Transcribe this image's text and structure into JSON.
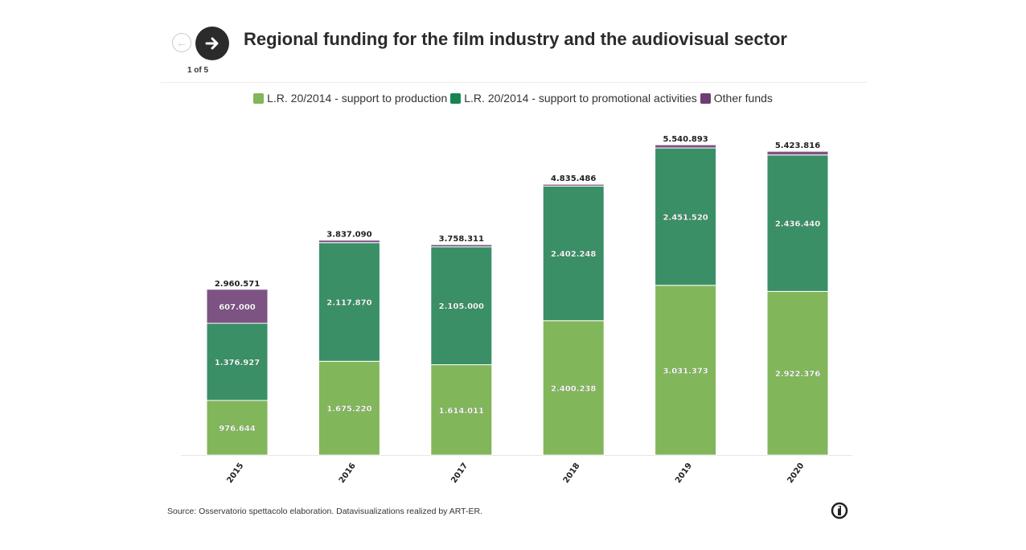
{
  "header": {
    "title": "Regional funding for the film industry and the audiovisual sector",
    "counter": "1 of 5",
    "prev_icon": "arrow-left-icon",
    "next_icon": "arrow-right-icon"
  },
  "footer": {
    "source": "Source: Osservatorio spettacolo elaboration. Datavisualizations realized by ART-ER.",
    "logo_icon": "info-logo-icon"
  },
  "chart_data": {
    "type": "bar",
    "stacked": true,
    "title": "Regional funding for the film industry and the audiovisual sector",
    "xlabel": "",
    "ylabel": "",
    "ylim": [
      0,
      5540893
    ],
    "grid": false,
    "legend_position": "top",
    "categories": [
      "2015",
      "2016",
      "2017",
      "2018",
      "2019",
      "2020"
    ],
    "series": [
      {
        "name": "L.R. 20/2014 - support to production",
        "color": "#82b65b",
        "values": [
          976644,
          1675220,
          1614011,
          2400238,
          3031373,
          2922376
        ],
        "labels": [
          "976.644",
          "1.675.220",
          "1.614.011",
          "2.400.238",
          "3.031.373",
          "2.922.376"
        ]
      },
      {
        "name": "L.R. 20/2014 - support to promotional activities",
        "color": "#3a8f66",
        "values": [
          1376927,
          2117870,
          2105000,
          2402248,
          2451520,
          2436440
        ],
        "labels": [
          "1.376.927",
          "2.117.870",
          "2.105.000",
          "2.402.248",
          "2.451.520",
          "2.436.440"
        ]
      },
      {
        "name": "Other funds",
        "color": "#7d5384",
        "values": [
          607000,
          44000,
          39300,
          33000,
          58000,
          65000
        ],
        "labels": [
          "607.000",
          "",
          "",
          "",
          "",
          ""
        ]
      }
    ],
    "totals": [
      2960571,
      3837090,
      3758311,
      4835486,
      5540893,
      5423816
    ],
    "total_labels": [
      "2.960.571",
      "3.837.090",
      "3.758.311",
      "4.835.486",
      "5.540.893",
      "5.423.816"
    ]
  }
}
